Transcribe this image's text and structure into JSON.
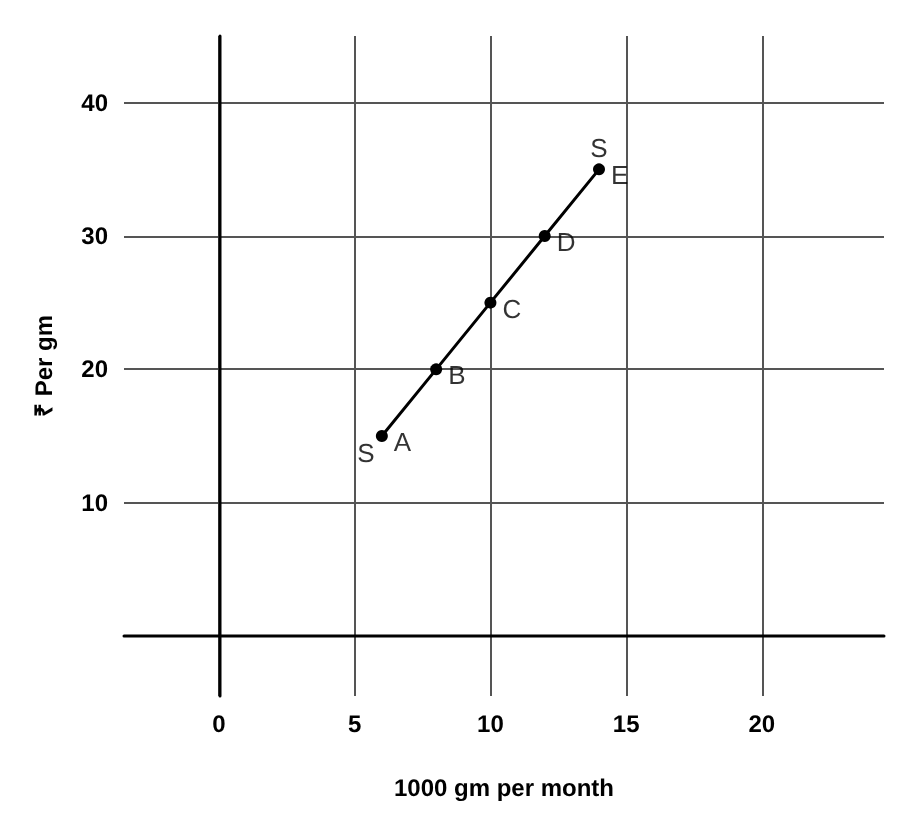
{
  "chart_data": {
    "type": "line",
    "xlabel": "1000 gm per month",
    "ylabel": "₹ Per gm",
    "x": [
      6,
      8,
      10,
      12,
      14
    ],
    "series": [
      {
        "color": "#000000",
        "values": [
          15,
          20,
          25,
          30,
          35
        ]
      }
    ],
    "xlim": [
      -3.5,
      24.5
    ],
    "ylim": [
      -4.5,
      45
    ],
    "xticks": [
      0,
      5,
      10,
      15,
      20
    ],
    "yticks": [
      10,
      20,
      30,
      40
    ],
    "grid": true,
    "marker": "circle",
    "line_style": "solid",
    "annotations": [
      {
        "text": "A",
        "x": 6,
        "y": 15
      },
      {
        "text": "B",
        "x": 8,
        "y": 20
      },
      {
        "text": "C",
        "x": 10,
        "y": 25
      },
      {
        "text": "D",
        "x": 12,
        "y": 30
      },
      {
        "text": "E",
        "x": 14,
        "y": 35
      },
      {
        "text": "S",
        "x": 6,
        "y": 15
      },
      {
        "text": "S",
        "x": 14,
        "y": 35
      }
    ]
  }
}
